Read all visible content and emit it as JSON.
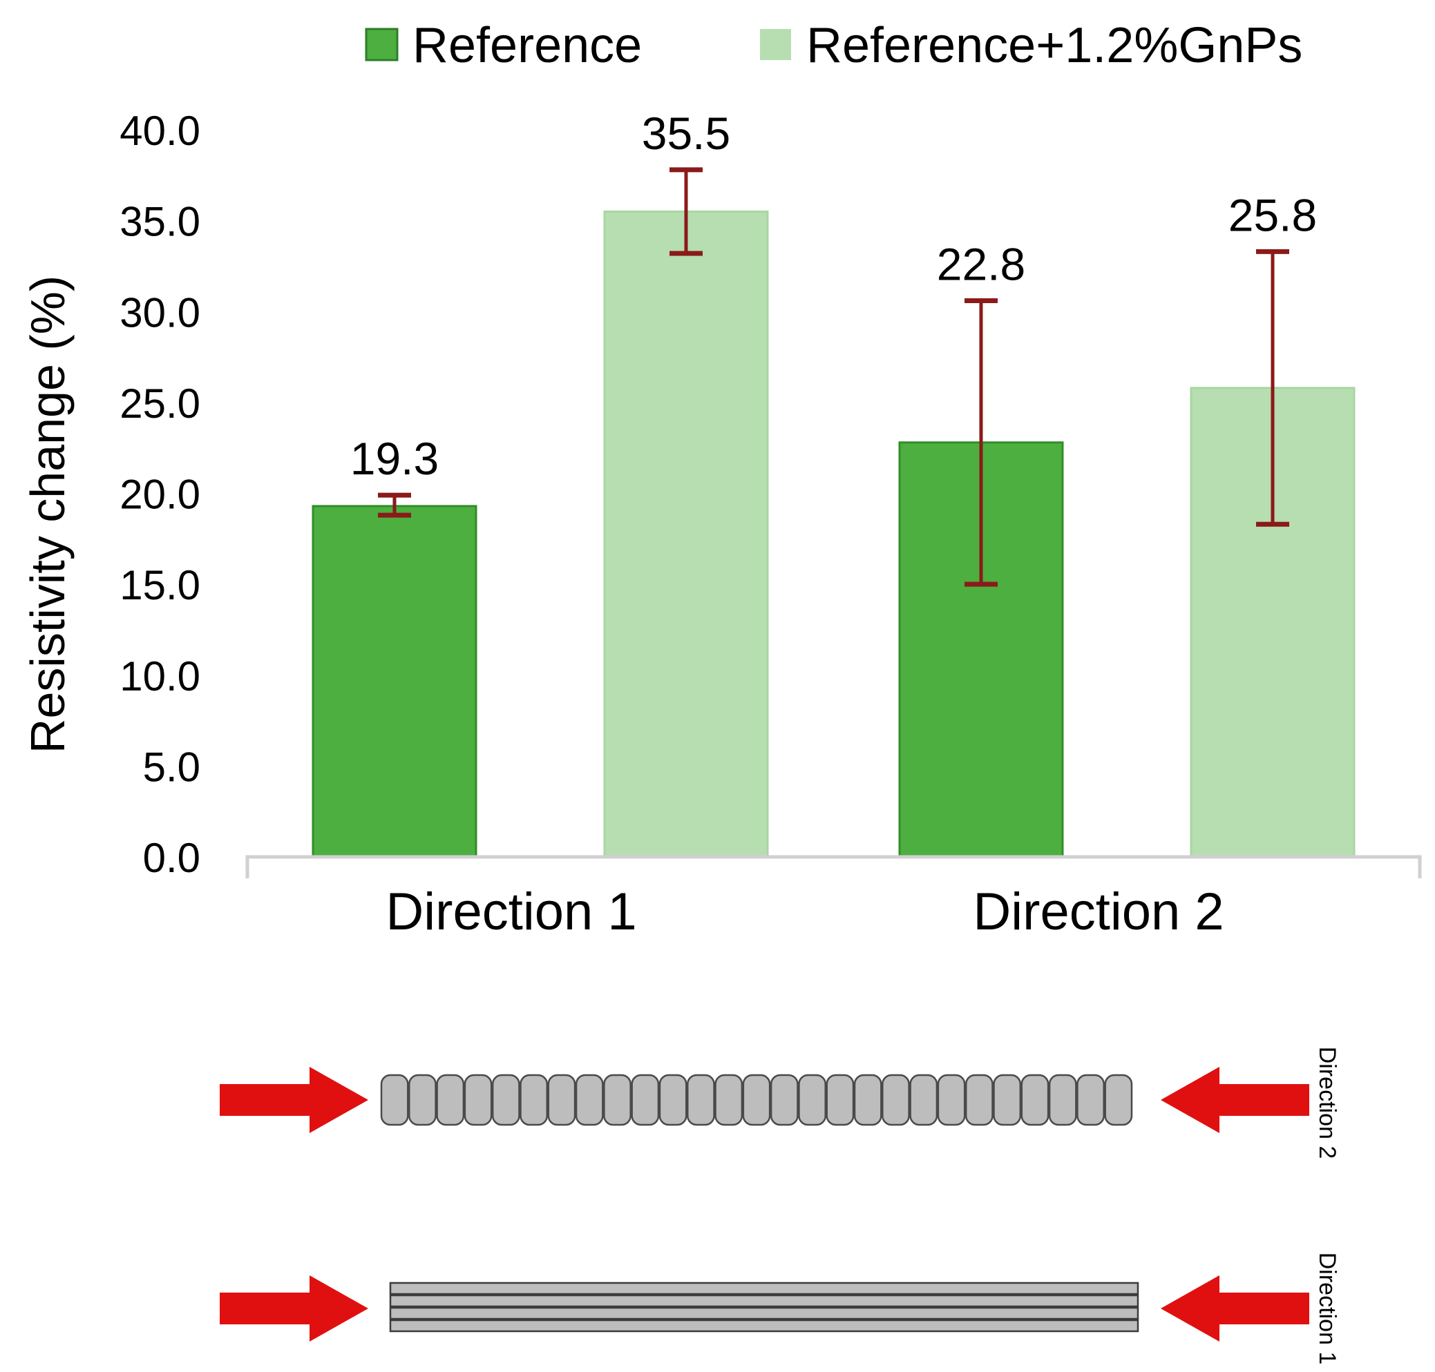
{
  "chart_data": {
    "type": "bar",
    "ylabel": "Resistivity change (%)",
    "xlabel": "",
    "ylim": [
      0,
      40
    ],
    "yticks": [
      "0.0",
      "5.0",
      "10.0",
      "15.0",
      "20.0",
      "25.0",
      "30.0",
      "35.0",
      "40.0"
    ],
    "categories": [
      "Direction 1",
      "Direction 2"
    ],
    "legend_position": "top",
    "grid": false,
    "series": [
      {
        "name": "Reference",
        "color": "#4caf3f",
        "values": [
          19.3,
          22.8
        ],
        "labels": [
          "19.3",
          "22.8"
        ],
        "error_low": [
          18.8,
          15.0
        ],
        "error_high": [
          19.9,
          30.6
        ]
      },
      {
        "name": "Reference+1.2%GnPs",
        "color": "#b6deb0",
        "values": [
          35.5,
          25.8
        ],
        "labels": [
          "35.5",
          "25.8"
        ],
        "error_low": [
          33.2,
          18.3
        ],
        "error_high": [
          37.8,
          33.3
        ]
      }
    ],
    "error_bar_color": "#8b1a1a"
  },
  "schematic": {
    "direction_2_label": "Direction 2",
    "direction_1_label": "Direction 1",
    "arrow_color": "#e01010",
    "specimen_color": "#bdbdbd"
  }
}
